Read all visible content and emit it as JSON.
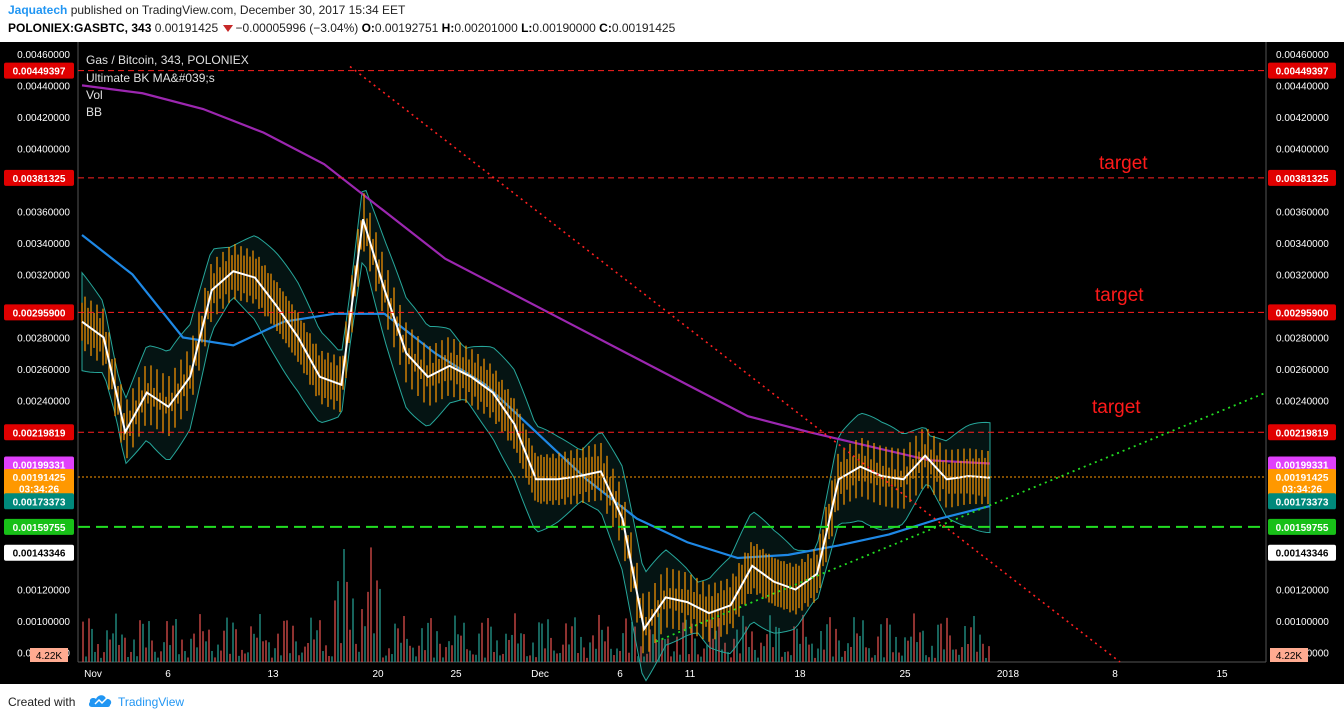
{
  "header": {
    "author": "Jaquatech",
    "published_text": " published on TradingView.com, December 30, 2017 15:34 EET",
    "symbol": "POLONIEX:GASBTC, 343",
    "last": "0.00191425",
    "change": "−0.00005996 (−3.04%)",
    "o_label": "O:",
    "o_value": "0.00192751",
    "h_label": "H:",
    "h_value": "0.00201000",
    "l_label": "L:",
    "l_value": "0.00190000",
    "c_label": "C:",
    "c_value": "0.00191425"
  },
  "legend": [
    "Gas / Bitcoin, 343, POLONIEX",
    "Ultimate BK MA&#039;s",
    "Vol",
    "BB"
  ],
  "annotations": [
    "target",
    "target",
    "target"
  ],
  "footer": {
    "created_with": "Created with",
    "brand": "TradingView"
  },
  "colors": {
    "background": "#000000",
    "candle": "#ff9800",
    "white_ma": "#ffffff",
    "purple_ma": "#9c27b0",
    "blue_ma": "#1e88e5",
    "bb": "#26a69a",
    "red_line": "#ff2020",
    "green_line": "#22dd22",
    "target_text": "#ff1a1a"
  },
  "chart_data": {
    "type": "line",
    "title": "Gas / Bitcoin, 343, POLONIEX",
    "price_axis": {
      "ticks": [
        "0.00460000",
        "0.00440000",
        "0.00420000",
        "0.00400000",
        "0.00360000",
        "0.00340000",
        "0.00320000",
        "0.00280000",
        "0.00260000",
        "0.00240000",
        "0.00120000",
        "0.00100000",
        "0.00080000"
      ],
      "ylim": [
        0.00074,
        0.00465
      ]
    },
    "x_axis": {
      "labels": [
        "Nov",
        "6",
        "13",
        "20",
        "25",
        "Dec",
        "6",
        "11",
        "18",
        "25",
        "2018",
        "8",
        "15"
      ]
    },
    "horizontal_levels": [
      {
        "value": 0.00449397,
        "label": "0.00449397",
        "kind": "resistance"
      },
      {
        "value": 0.00381325,
        "label": "0.00381325",
        "kind": "target"
      },
      {
        "value": 0.002959,
        "label": "0.00295900",
        "kind": "target"
      },
      {
        "value": 0.00219819,
        "label": "0.00219819",
        "kind": "target"
      },
      {
        "value": 0.00159755,
        "label": "0.00159755",
        "kind": "support"
      }
    ],
    "price_tags": {
      "left": [
        {
          "value": 0.00199331,
          "label": "0.00199331",
          "color": "#e040fb"
        },
        {
          "value": 0.00191425,
          "label": "0.00191425",
          "color": "#ff9800"
        },
        {
          "value": 0.00184,
          "label": "03:34:26",
          "color": "#ff9800"
        },
        {
          "value": 0.00176,
          "label": "0.00173373",
          "color": "#00897b"
        },
        {
          "value": 0.00143346,
          "label": "0.00143346",
          "color": "#ffffff"
        }
      ],
      "right": [
        {
          "value": 0.00199331,
          "label": "0.00199331",
          "color": "#e040fb"
        },
        {
          "value": 0.00191425,
          "label": "0.00191425",
          "color": "#ff9800"
        },
        {
          "value": 0.00184,
          "label": "03:34:26",
          "color": "#ff9800"
        },
        {
          "value": 0.00176,
          "label": "0.00173373",
          "color": "#00897b"
        },
        {
          "value": 0.00143346,
          "label": "0.00143346",
          "color": "#ffffff"
        }
      ]
    },
    "volume_label": "4.22K",
    "series": [
      {
        "name": "Price",
        "values": [
          0.0029,
          0.0028,
          0.0022,
          0.00245,
          0.00236,
          0.00255,
          0.0031,
          0.00322,
          0.00318,
          0.003,
          0.0028,
          0.00255,
          0.0025,
          0.00355,
          0.0031,
          0.0027,
          0.00255,
          0.00262,
          0.00255,
          0.00245,
          0.00225,
          0.0019,
          0.0019,
          0.00192,
          0.00195,
          0.00165,
          0.00095,
          0.00115,
          0.00112,
          0.00105,
          0.0011,
          0.00135,
          0.00125,
          0.0012,
          0.0013,
          0.0019,
          0.00198,
          0.00192,
          0.0019,
          0.00205,
          0.0019,
          0.00192,
          0.00191
        ]
      },
      {
        "name": "MA-purple",
        "values": [
          0.0044,
          0.00435,
          0.00425,
          0.0041,
          0.0039,
          0.0036,
          0.0033,
          0.0031,
          0.0029,
          0.0027,
          0.0025,
          0.0023,
          0.0022,
          0.00211,
          0.00202,
          0.002
        ]
      },
      {
        "name": "MA-blue",
        "values": [
          0.00345,
          0.0032,
          0.0028,
          0.00275,
          0.0029,
          0.00295,
          0.00295,
          0.0027,
          0.0025,
          0.0022,
          0.0019,
          0.00165,
          0.0015,
          0.0014,
          0.00142,
          0.00148,
          0.00155,
          0.00165,
          0.00173
        ]
      }
    ]
  }
}
